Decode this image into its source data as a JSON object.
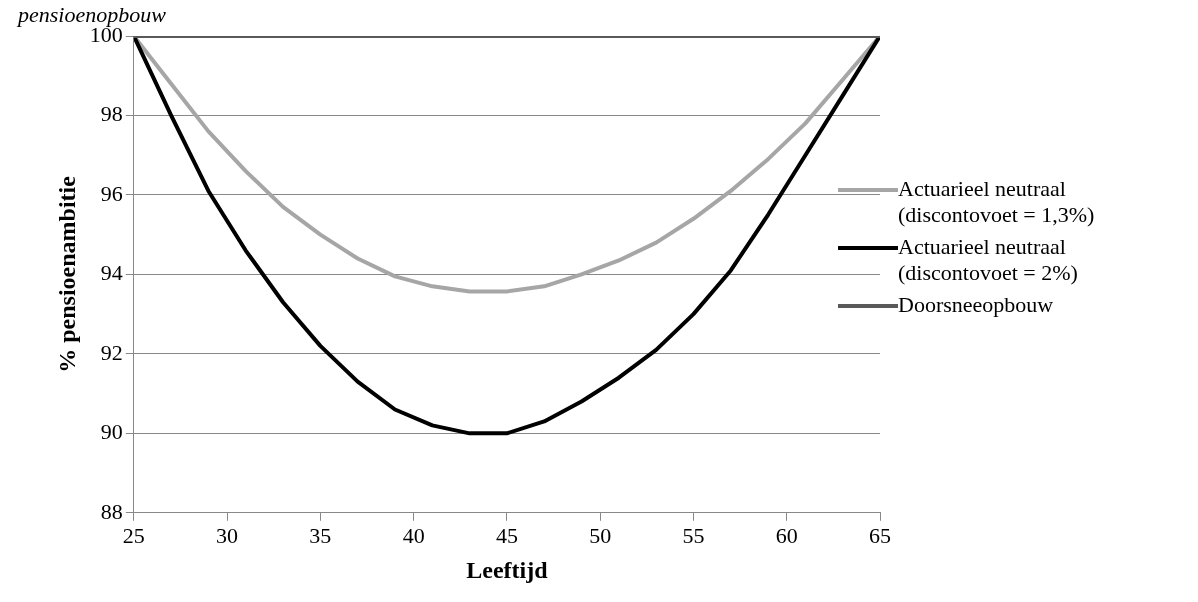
{
  "chart_data": {
    "type": "line",
    "xlabel": "Leeftijd",
    "ylabel": "% pensioenambitie",
    "annotations": [
      "pensioenopbouw"
    ],
    "xlim": [
      25,
      65
    ],
    "xticks": [
      25,
      30,
      35,
      40,
      45,
      50,
      55,
      60,
      65
    ],
    "ylim": [
      88,
      100
    ],
    "yticks": [
      88,
      90,
      92,
      94,
      96,
      98,
      100
    ],
    "grid": "y",
    "legend": "right",
    "marker": "none",
    "line_style": "solid",
    "series": [
      {
        "name": "Actuarieel neutraal (discontovoet = 1,3%)",
        "color": "#a6a6a6",
        "x": [
          25,
          27,
          29,
          31,
          33,
          35,
          37,
          39,
          41,
          43,
          45,
          47,
          49,
          51,
          53,
          55,
          57,
          59,
          61,
          63,
          65
        ],
        "values": [
          100,
          98.8,
          97.6,
          96.6,
          95.7,
          95.0,
          94.4,
          93.95,
          93.7,
          93.57,
          93.57,
          93.7,
          94.0,
          94.35,
          94.8,
          95.4,
          96.1,
          96.9,
          97.8,
          98.9,
          100
        ]
      },
      {
        "name": "Actuarieel neutraal (discontovoet = 2%)",
        "color": "#000000",
        "x": [
          25,
          27,
          29,
          31,
          33,
          35,
          37,
          39,
          41,
          43,
          45,
          47,
          49,
          51,
          53,
          55,
          57,
          59,
          61,
          63,
          65
        ],
        "values": [
          100,
          98.0,
          96.1,
          94.6,
          93.3,
          92.2,
          91.3,
          90.6,
          90.2,
          90.0,
          90.0,
          90.3,
          90.8,
          91.4,
          92.1,
          93.0,
          94.1,
          95.5,
          97.0,
          98.5,
          100
        ]
      },
      {
        "name": "Doorsneeopbouw",
        "color": "#595959",
        "x": [
          25,
          65
        ],
        "values": [
          100,
          100
        ]
      }
    ]
  }
}
